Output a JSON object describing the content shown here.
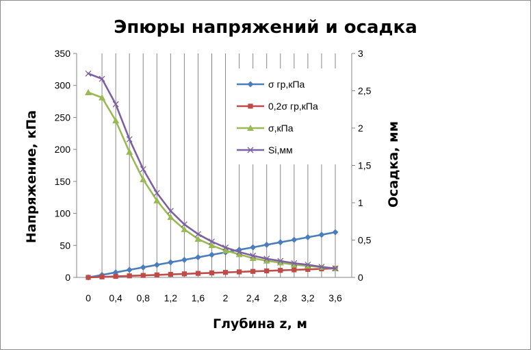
{
  "chart_data": {
    "type": "line",
    "title": "Эпюры напряжений и осадка",
    "xlabel": "Глубина z, м",
    "ylabel_left": "Напряжение, кПа",
    "ylabel_right": "Осадка, мм",
    "xlim": [
      0,
      3.6
    ],
    "ylim_left": [
      0,
      350
    ],
    "ylim_right": [
      0,
      3
    ],
    "x_ticks": [
      "0",
      "0,4",
      "0,8",
      "1,2",
      "1,6",
      "2",
      "2,4",
      "2,8",
      "3,2",
      "3,6"
    ],
    "y_left_ticks": [
      "0",
      "50",
      "100",
      "150",
      "200",
      "250",
      "300",
      "350"
    ],
    "y_right_ticks": [
      "0",
      "0,5",
      "1",
      "1,5",
      "2",
      "2,5",
      "3"
    ],
    "grid": "vertical",
    "legend_position": "top-right",
    "x": [
      0,
      0.2,
      0.4,
      0.6,
      0.8,
      1.0,
      1.2,
      1.4,
      1.6,
      1.8,
      2.0,
      2.2,
      2.4,
      2.6,
      2.8,
      3.0,
      3.2,
      3.4,
      3.6
    ],
    "series": [
      {
        "name": "σ гр,кПа",
        "axis": "left",
        "color": "#4a7ebb",
        "marker": "diamond",
        "values": [
          0,
          3.9,
          7.8,
          11.8,
          15.7,
          19.6,
          23.5,
          27.4,
          31.4,
          35.3,
          39.2,
          43.1,
          47.0,
          51.0,
          54.9,
          58.8,
          62.7,
          66.6,
          70.6
        ]
      },
      {
        "name": "0,2σ гр,кПа",
        "axis": "left",
        "color": "#be4b48",
        "marker": "square",
        "values": [
          0,
          0.8,
          1.6,
          2.4,
          3.1,
          3.9,
          4.7,
          5.5,
          6.3,
          7.1,
          7.8,
          8.6,
          9.4,
          10.2,
          11.0,
          11.8,
          12.5,
          13.3,
          14.1
        ]
      },
      {
        "name": "σ,кПа",
        "axis": "left",
        "color": "#98b954",
        "marker": "triangle",
        "values": [
          289,
          281,
          245,
          196,
          153,
          120,
          94,
          75,
          60,
          50,
          42,
          36,
          30,
          26,
          23,
          20,
          18,
          16,
          14
        ]
      },
      {
        "name": "Si,мм",
        "axis": "right",
        "color": "#7d60a0",
        "marker": "x",
        "values": [
          2.73,
          2.66,
          2.32,
          1.85,
          1.45,
          1.13,
          0.89,
          0.71,
          0.58,
          0.48,
          0.4,
          0.34,
          0.29,
          0.25,
          0.22,
          0.19,
          0.17,
          0.14,
          0.12
        ]
      }
    ]
  }
}
